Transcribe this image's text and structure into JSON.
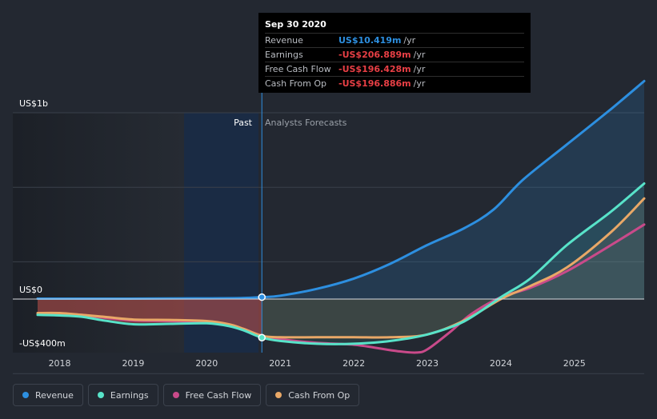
{
  "tooltip": {
    "date": "Sep 30 2020",
    "rows": [
      {
        "label": "Revenue",
        "value": "US$10.419m",
        "unit": "/yr",
        "color": "#2d8fe0"
      },
      {
        "label": "Earnings",
        "value": "-US$206.889m",
        "unit": "/yr",
        "color": "#e83f45"
      },
      {
        "label": "Free Cash Flow",
        "value": "-US$196.428m",
        "unit": "/yr",
        "color": "#e83f45"
      },
      {
        "label": "Cash From Op",
        "value": "-US$196.886m",
        "unit": "/yr",
        "color": "#e83f45"
      }
    ]
  },
  "chart_data": {
    "type": "line",
    "y_axis_labels": {
      "top": "US$1b",
      "zero": "US$0",
      "bottom": "-US$400m"
    },
    "ylim": [
      -400,
      1000
    ],
    "xlim": [
      2017.7,
      2025.95
    ],
    "x_ticks": [
      "2018",
      "2019",
      "2020",
      "2021",
      "2022",
      "2023",
      "2024",
      "2025"
    ],
    "x_tick_values": [
      2018,
      2019,
      2020,
      2021,
      2022,
      2023,
      2024,
      2025
    ],
    "divider_x": 2020.75,
    "divider_labels": {
      "past": "Past",
      "forecast": "Analysts Forecasts"
    },
    "series": [
      {
        "name": "Revenue",
        "color": "#2d8fe0",
        "points": [
          [
            2017.7,
            2
          ],
          [
            2018.5,
            2
          ],
          [
            2019.5,
            3
          ],
          [
            2020.0,
            4
          ],
          [
            2020.5,
            6
          ],
          [
            2020.75,
            10.4
          ],
          [
            2021.0,
            18
          ],
          [
            2021.5,
            55
          ],
          [
            2022.0,
            110
          ],
          [
            2022.5,
            190
          ],
          [
            2023.0,
            290
          ],
          [
            2023.5,
            380
          ],
          [
            2023.9,
            480
          ],
          [
            2024.3,
            640
          ],
          [
            2024.9,
            830
          ],
          [
            2025.5,
            1020
          ],
          [
            2025.95,
            1170
          ]
        ]
      },
      {
        "name": "Earnings",
        "color": "#58e3c9",
        "points": [
          [
            2017.7,
            -85
          ],
          [
            2018.0,
            -88
          ],
          [
            2018.3,
            -95
          ],
          [
            2018.6,
            -115
          ],
          [
            2019.0,
            -135
          ],
          [
            2019.5,
            -133
          ],
          [
            2020.0,
            -130
          ],
          [
            2020.3,
            -145
          ],
          [
            2020.5,
            -168
          ],
          [
            2020.75,
            -206.9
          ],
          [
            2021.0,
            -225
          ],
          [
            2021.5,
            -240
          ],
          [
            2022.0,
            -240
          ],
          [
            2022.5,
            -225
          ],
          [
            2023.0,
            -190
          ],
          [
            2023.5,
            -120
          ],
          [
            2024.0,
            10
          ],
          [
            2024.4,
            110
          ],
          [
            2024.9,
            290
          ],
          [
            2025.5,
            470
          ],
          [
            2025.95,
            620
          ]
        ]
      },
      {
        "name": "Free Cash Flow",
        "color": "#c94a8a",
        "points": [
          [
            2017.7,
            -80
          ],
          [
            2018.0,
            -78
          ],
          [
            2018.3,
            -85
          ],
          [
            2018.6,
            -100
          ],
          [
            2019.0,
            -115
          ],
          [
            2019.5,
            -118
          ],
          [
            2020.0,
            -125
          ],
          [
            2020.3,
            -140
          ],
          [
            2020.5,
            -160
          ],
          [
            2020.75,
            -196.4
          ],
          [
            2021.0,
            -215
          ],
          [
            2021.5,
            -235
          ],
          [
            2022.0,
            -245
          ],
          [
            2022.3,
            -262
          ],
          [
            2022.6,
            -280
          ],
          [
            2022.85,
            -287
          ],
          [
            2023.0,
            -270
          ],
          [
            2023.3,
            -180
          ],
          [
            2023.6,
            -80
          ],
          [
            2024.0,
            10
          ],
          [
            2024.4,
            60
          ],
          [
            2024.9,
            150
          ],
          [
            2025.5,
            290
          ],
          [
            2025.95,
            400
          ]
        ]
      },
      {
        "name": "Cash From Op",
        "color": "#e9a867",
        "points": [
          [
            2017.7,
            -75
          ],
          [
            2018.0,
            -75
          ],
          [
            2018.3,
            -85
          ],
          [
            2018.6,
            -95
          ],
          [
            2019.0,
            -110
          ],
          [
            2019.5,
            -112
          ],
          [
            2020.0,
            -118
          ],
          [
            2020.3,
            -135
          ],
          [
            2020.5,
            -160
          ],
          [
            2020.75,
            -196.9
          ],
          [
            2021.0,
            -205
          ],
          [
            2021.5,
            -205
          ],
          [
            2022.0,
            -205
          ],
          [
            2022.5,
            -205
          ],
          [
            2023.0,
            -190
          ],
          [
            2023.5,
            -115
          ],
          [
            2024.0,
            0
          ],
          [
            2024.4,
            70
          ],
          [
            2024.9,
            170
          ],
          [
            2025.5,
            360
          ],
          [
            2025.95,
            540
          ]
        ]
      }
    ],
    "highlight_markers": [
      {
        "series": "Revenue",
        "x": 2020.75,
        "y": 10.4
      },
      {
        "series": "Earnings",
        "x": 2020.75,
        "y": -206.9
      }
    ]
  },
  "legend": [
    {
      "label": "Revenue",
      "color": "#2d8fe0"
    },
    {
      "label": "Earnings",
      "color": "#58e3c9"
    },
    {
      "label": "Free Cash Flow",
      "color": "#c94a8a"
    },
    {
      "label": "Cash From Op",
      "color": "#e9a867"
    }
  ]
}
